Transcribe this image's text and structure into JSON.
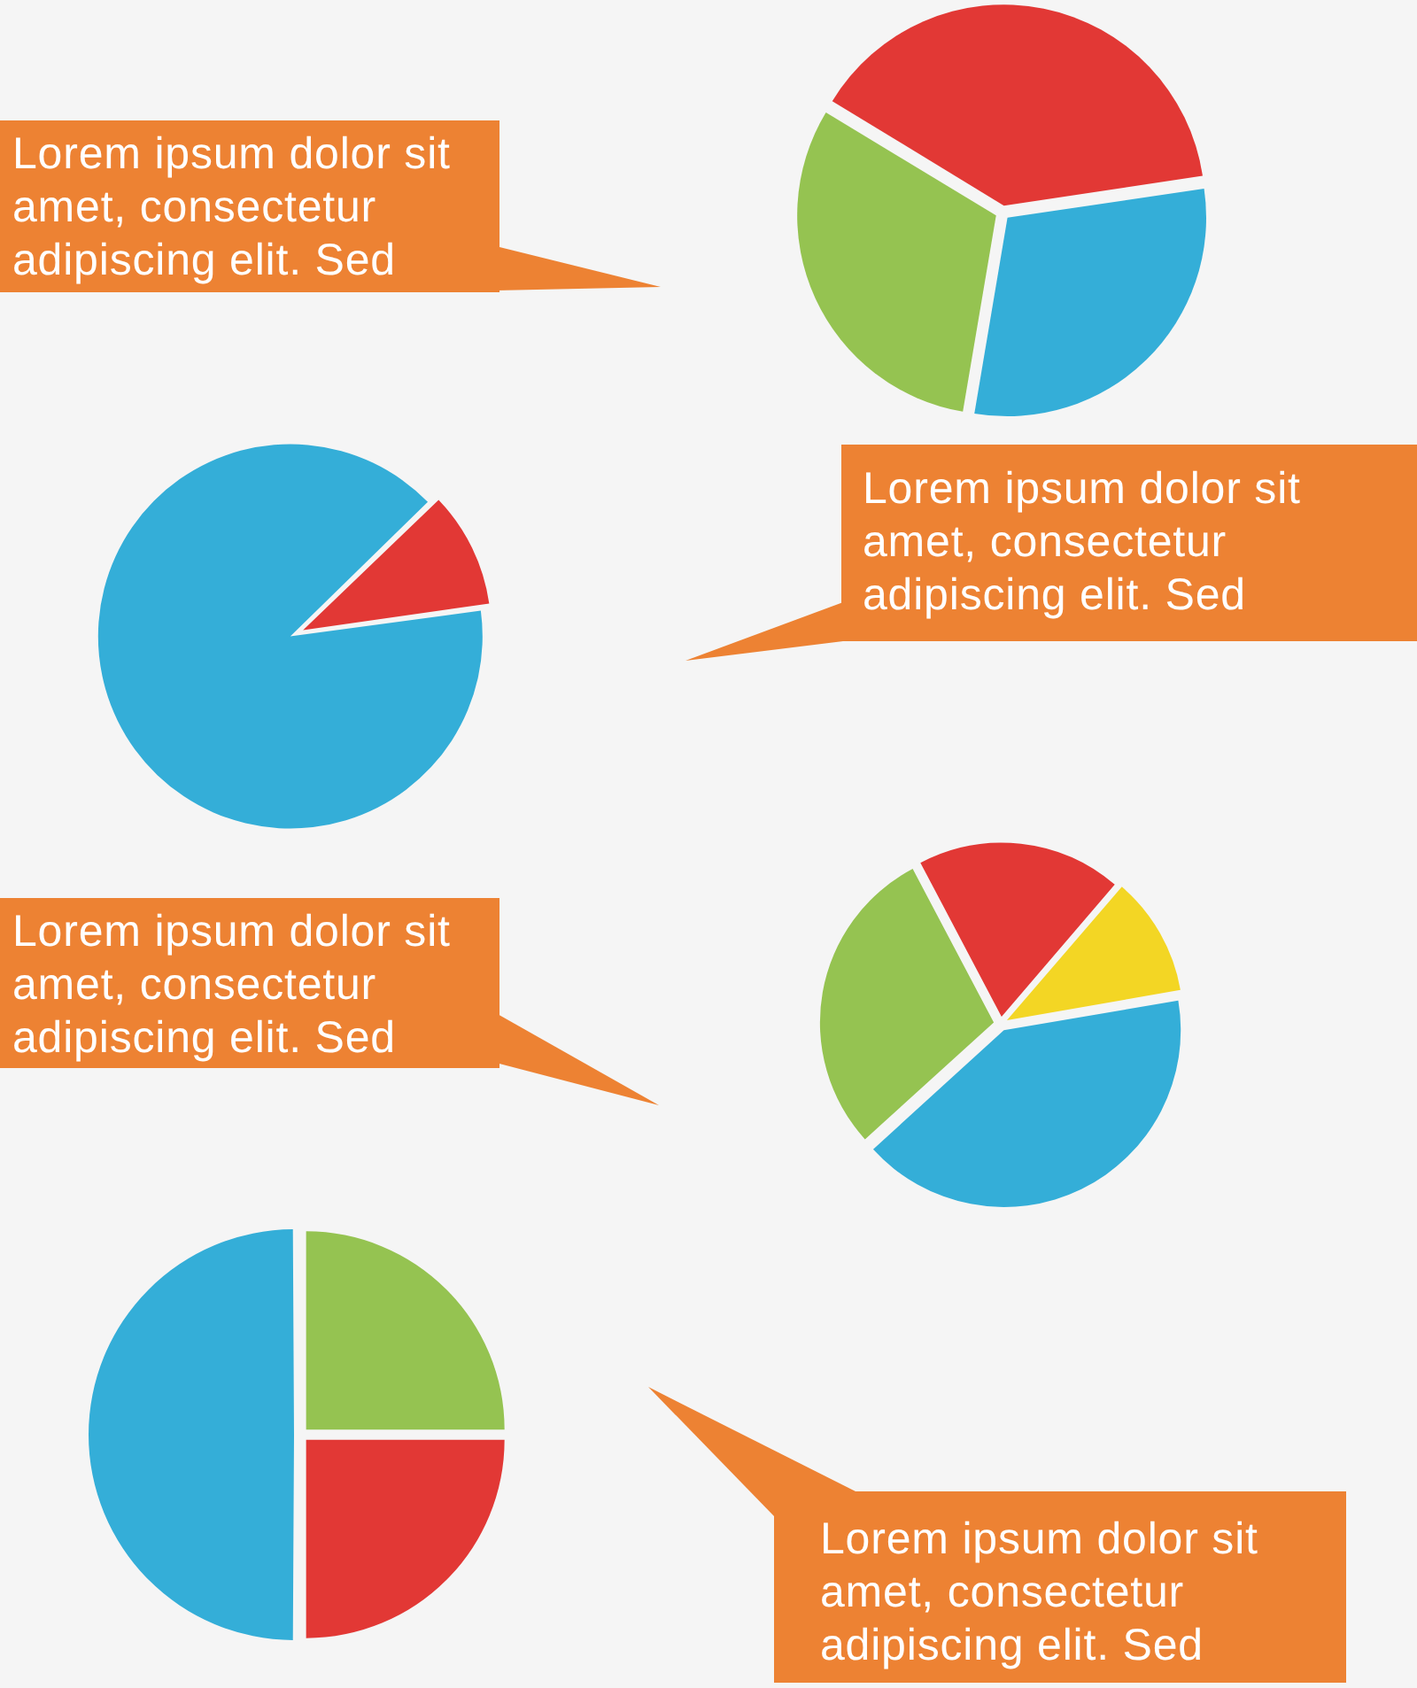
{
  "chart_data": [
    {
      "type": "pie",
      "categories": [
        null,
        null,
        null
      ],
      "values": [
        39,
        30,
        31
      ],
      "colors": [
        "#e23835",
        "#34aed8",
        "#95c351"
      ],
      "annotations": [
        "Lorem ipsum dolor sit amet, consectetur adipiscing elit. Sed"
      ]
    },
    {
      "type": "pie",
      "categories": [
        null,
        null
      ],
      "values": [
        10,
        90
      ],
      "colors": [
        "#e23835",
        "#34aed8"
      ],
      "annotations": [
        "Lorem ipsum dolor sit amet, consectetur adipiscing elit. Sed"
      ]
    },
    {
      "type": "pie",
      "categories": [
        null,
        null,
        null,
        null
      ],
      "values": [
        19,
        11,
        41,
        29
      ],
      "colors": [
        "#e23835",
        "#f3d624",
        "#34aed8",
        "#95c351"
      ],
      "annotations": [
        "Lorem ipsum dolor sit amet, consectetur adipiscing elit. Sed"
      ]
    },
    {
      "type": "pie",
      "categories": [
        null,
        null,
        null
      ],
      "values": [
        25,
        25,
        50
      ],
      "colors": [
        "#95c351",
        "#e23835",
        "#34aed8"
      ],
      "annotations": [
        "Lorem ipsum dolor sit amet, consectetur adipiscing elit. Sed"
      ]
    }
  ]
}
